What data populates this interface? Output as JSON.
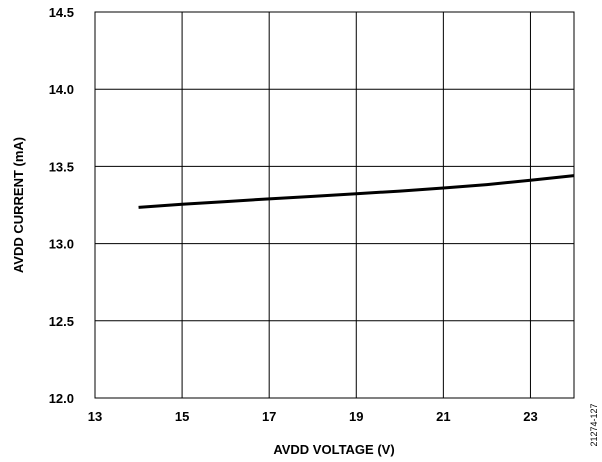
{
  "chart_data": {
    "type": "line",
    "title": "",
    "xlabel": "AVDD VOLTAGE (V)",
    "ylabel": "AVDD CURRENT (mA)",
    "xlim": [
      13,
      24
    ],
    "ylim": [
      12.0,
      14.5
    ],
    "x_ticks": [
      13,
      15,
      17,
      19,
      21,
      23
    ],
    "y_ticks": [
      "12.0",
      "12.5",
      "13.0",
      "13.5",
      "14.0",
      "14.5"
    ],
    "grid": true,
    "legend": "none",
    "series": [
      {
        "color": "#000000",
        "x": [
          14,
          15,
          16,
          17,
          18,
          19,
          20,
          21,
          22,
          23,
          24
        ],
        "y": [
          13.235,
          13.255,
          13.272,
          13.29,
          13.306,
          13.323,
          13.34,
          13.36,
          13.382,
          13.41,
          13.44
        ]
      }
    ]
  },
  "figure_id": "21274-127"
}
